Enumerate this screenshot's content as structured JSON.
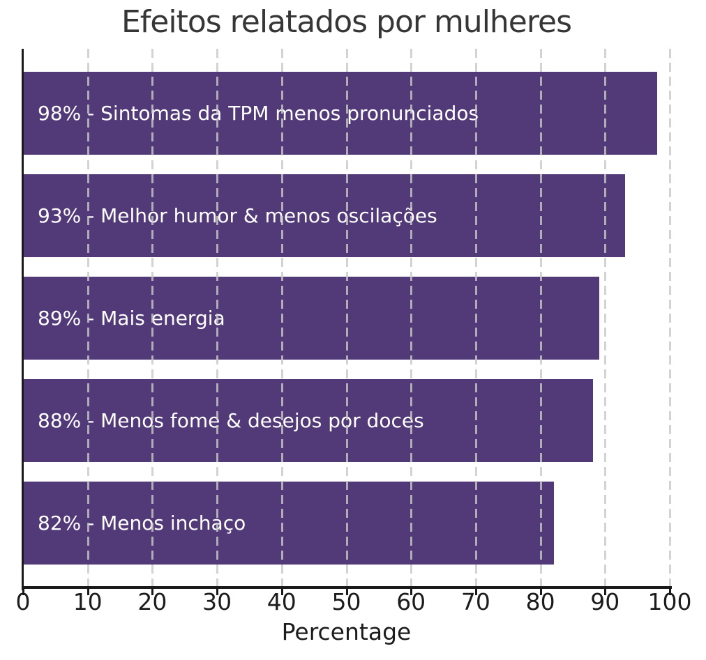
{
  "chart_data": {
    "type": "bar",
    "orientation": "horizontal",
    "title": "Efeitos relatados por mulheres",
    "xlabel": "Percentage",
    "xlim": [
      0,
      100
    ],
    "xticks": [
      0,
      10,
      20,
      30,
      40,
      50,
      60,
      70,
      80,
      90,
      100
    ],
    "grid": "vertical dashed, drawn over bars",
    "legend": "none",
    "bar_color": "#523a78",
    "bar_label_color": "#ffffff",
    "title_color": "#363636",
    "axis_color": "#1a1a1a",
    "gridline_color": "#c8c8c8",
    "categories": [
      "Sintomas da TPM menos pronunciados",
      "Melhor humor & menos oscilações",
      "Mais energia",
      "Menos fome & desejos por doces",
      "Menos inchaço"
    ],
    "values": [
      98,
      93,
      89,
      88,
      82
    ],
    "bar_labels": [
      "98% - Sintomas da TPM menos pronunciados",
      "93% - Melhor humor & menos oscilações",
      "89% - Mais energia",
      "88% - Menos fome & desejos por doces",
      "82% - Menos inchaço"
    ]
  }
}
